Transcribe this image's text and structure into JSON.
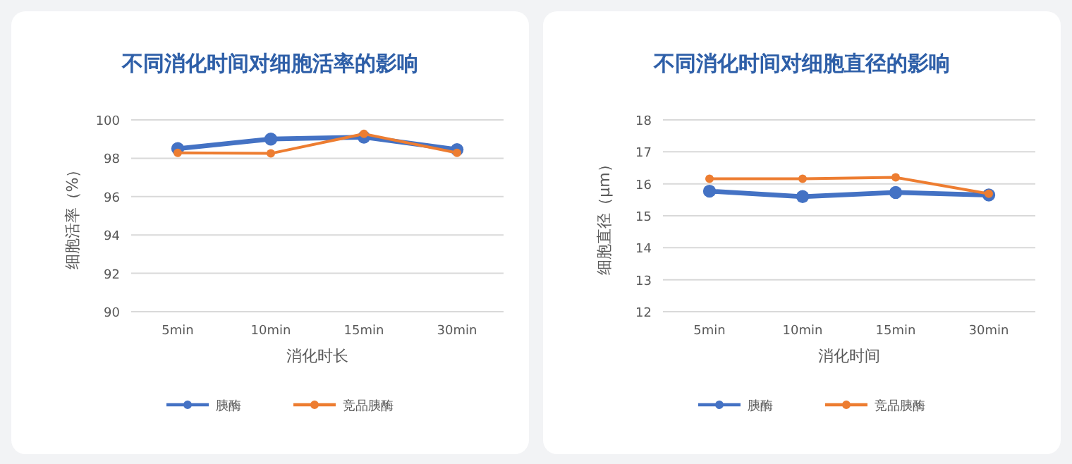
{
  "chart_data": [
    {
      "type": "line",
      "title": "不同消化时间对细胞活率的影响",
      "xlabel": "消化时长",
      "ylabel": "细胞活率（%）",
      "categories": [
        "5min",
        "10min",
        "15min",
        "30min"
      ],
      "ylim": [
        90,
        100
      ],
      "yticks": [
        90,
        92,
        94,
        96,
        98,
        100
      ],
      "grid": "y",
      "legend": "bottom",
      "marker": "circle",
      "series": [
        {
          "name": "胰酶",
          "color": "#4472c4",
          "values": [
            98.5,
            99.0,
            99.1,
            98.45
          ]
        },
        {
          "name": "竞品胰酶",
          "color": "#ed7d31",
          "values": [
            98.28,
            98.25,
            99.27,
            98.28
          ]
        }
      ]
    },
    {
      "type": "line",
      "title": "不同消化时间对细胞直径的影响",
      "xlabel": "消化时间",
      "ylabel": "细胞直径（μm）",
      "categories": [
        "5min",
        "10min",
        "15min",
        "30min"
      ],
      "ylim": [
        12,
        18
      ],
      "yticks": [
        12,
        13,
        14,
        15,
        16,
        17,
        18
      ],
      "grid": "y",
      "legend": "bottom",
      "marker": "circle",
      "series": [
        {
          "name": "胰酶",
          "color": "#4472c4",
          "values": [
            15.77,
            15.6,
            15.73,
            15.65
          ]
        },
        {
          "name": "竞品胰酶",
          "color": "#ed7d31",
          "values": [
            16.16,
            16.16,
            16.2,
            15.69
          ]
        }
      ]
    }
  ]
}
